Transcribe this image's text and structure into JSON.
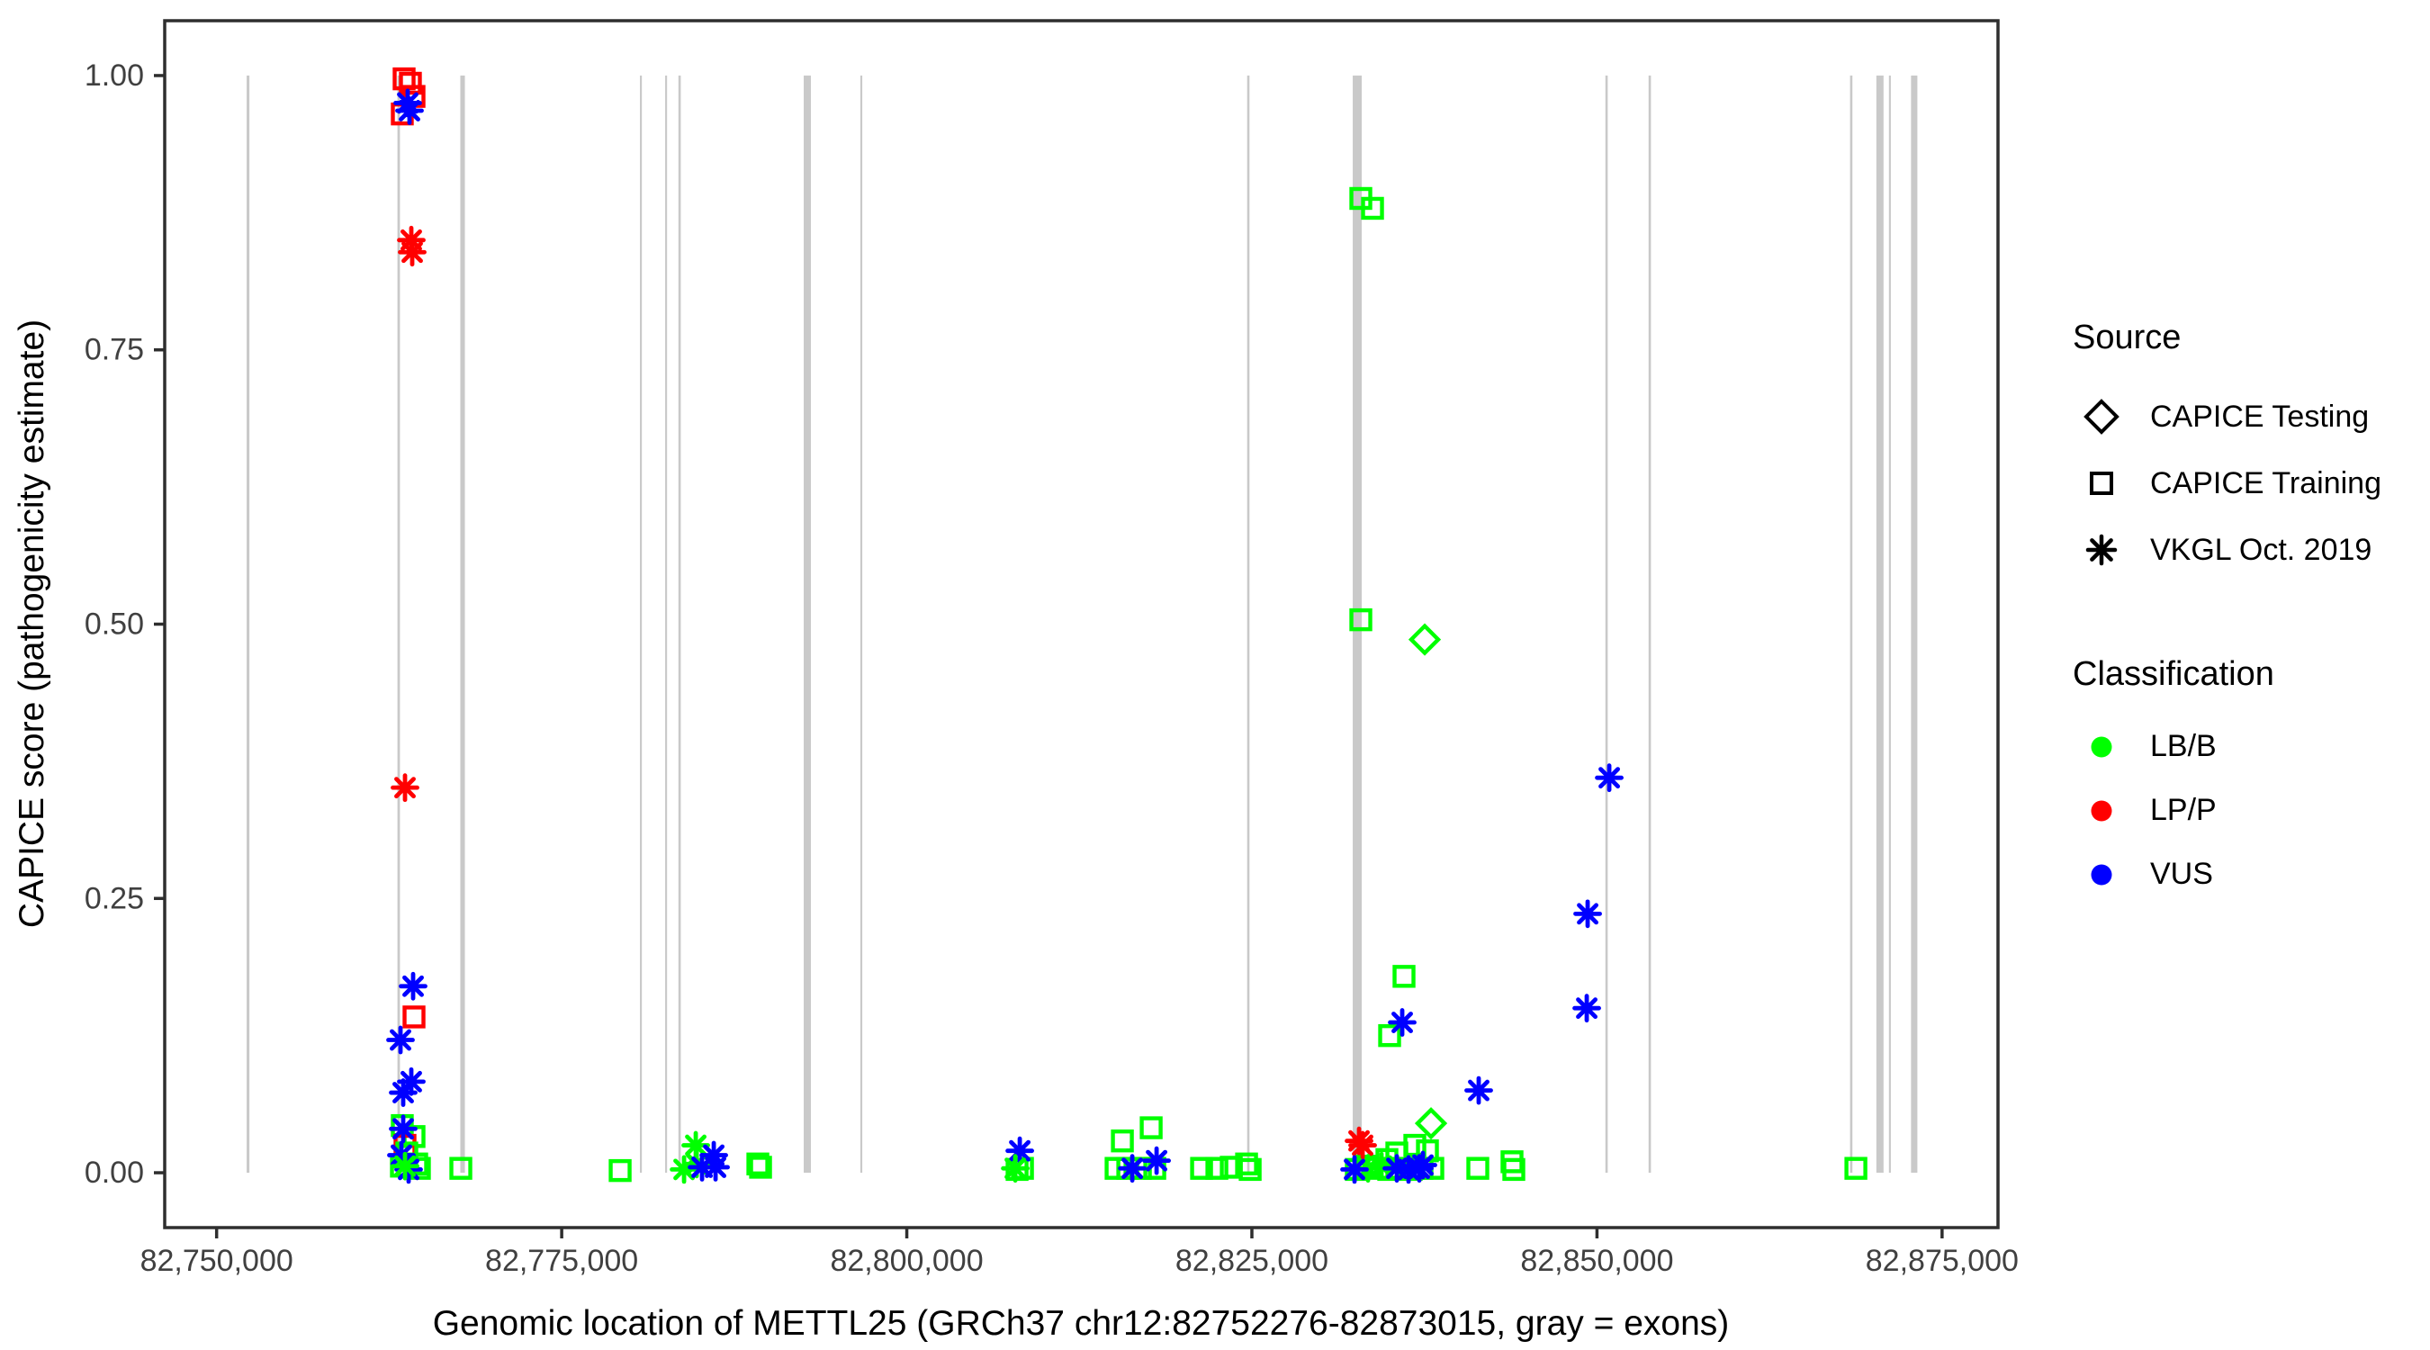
{
  "chart_data": {
    "type": "scatter",
    "title": "",
    "xlabel": "Genomic location of METTL25 (GRCh37 chr12:82752276-82873015, gray = exons)",
    "ylabel": "CAPICE score (pathogenicity estimate)",
    "x_range": [
      82746239,
      82879052
    ],
    "y_range": [
      -0.05,
      1.05
    ],
    "grid": "off",
    "x_ticks": [
      {
        "value": 82750000,
        "label": "82,750,000"
      },
      {
        "value": 82775000,
        "label": "82,775,000"
      },
      {
        "value": 82800000,
        "label": "82,800,000"
      },
      {
        "value": 82825000,
        "label": "82,825,000"
      },
      {
        "value": 82850000,
        "label": "82,850,000"
      },
      {
        "value": 82875000,
        "label": "82,875,000"
      }
    ],
    "y_ticks": [
      {
        "value": 0.0,
        "label": "0.00"
      },
      {
        "value": 0.25,
        "label": "0.25"
      },
      {
        "value": 0.5,
        "label": "0.50"
      },
      {
        "value": 0.75,
        "label": "0.75"
      },
      {
        "value": 1.0,
        "label": "1.00"
      }
    ],
    "gene": {
      "name": "METTL25",
      "assembly": "GRCh37",
      "chrom": "chr12",
      "start": 82752276,
      "end": 82873015
    },
    "exon_color": "#C9C9C9",
    "exons": [
      [
        82752276,
        200
      ],
      [
        82763191,
        180
      ],
      [
        82767820,
        330
      ],
      [
        82780737,
        140
      ],
      [
        82782563,
        140
      ],
      [
        82783541,
        170
      ],
      [
        82792792,
        520
      ],
      [
        82796705,
        140
      ],
      [
        82824742,
        170
      ],
      [
        82832631,
        650
      ],
      [
        82850694,
        170
      ],
      [
        82853824,
        170
      ],
      [
        82868420,
        170
      ],
      [
        82870500,
        520
      ],
      [
        82871220,
        140
      ],
      [
        82872980,
        460
      ]
    ],
    "source_codes": {
      "T": "CAPICE Testing",
      "R": "CAPICE Training",
      "V": "VKGL Oct. 2019"
    },
    "class_codes": {
      "B": "LB/B",
      "P": "LP/P",
      "U": "VUS"
    },
    "class_colors": {
      "B": "#00FF00",
      "P": "#FF0000",
      "U": "#0000FF"
    },
    "points": [
      [
        82763583,
        0.997,
        "R",
        "P"
      ],
      [
        82764039,
        0.993,
        "R",
        "P"
      ],
      [
        82764300,
        0.981,
        "R",
        "P"
      ],
      [
        82763452,
        0.965,
        "R",
        "P"
      ],
      [
        82763843,
        0.975,
        "V",
        "U"
      ],
      [
        82763974,
        0.968,
        "V",
        "U"
      ],
      [
        82764104,
        0.85,
        "V",
        "P"
      ],
      [
        82764170,
        0.839,
        "V",
        "P"
      ],
      [
        82763648,
        0.351,
        "V",
        "P"
      ],
      [
        82764235,
        0.17,
        "V",
        "U"
      ],
      [
        82764300,
        0.142,
        "R",
        "P"
      ],
      [
        82763322,
        0.121,
        "V",
        "U"
      ],
      [
        82764104,
        0.083,
        "V",
        "U"
      ],
      [
        82763517,
        0.073,
        "V",
        "U"
      ],
      [
        82763452,
        0.043,
        "R",
        "B"
      ],
      [
        82763517,
        0.04,
        "V",
        "U"
      ],
      [
        82764300,
        0.033,
        "R",
        "B"
      ],
      [
        82763648,
        0.025,
        "R",
        "P"
      ],
      [
        82763778,
        0.018,
        "R",
        "B"
      ],
      [
        82763387,
        0.016,
        "V",
        "U"
      ],
      [
        82763909,
        0.003,
        "V",
        "U"
      ],
      [
        82763387,
        0.006,
        "R",
        "B"
      ],
      [
        82764495,
        0.008,
        "R",
        "B"
      ],
      [
        82764691,
        0.004,
        "R",
        "B"
      ],
      [
        82763648,
        0.006,
        "V",
        "B"
      ],
      [
        82767692,
        0.004,
        "R",
        "B"
      ],
      [
        82779234,
        0.002,
        "R",
        "B"
      ],
      [
        82784712,
        0.025,
        "V",
        "B"
      ],
      [
        82784777,
        0.008,
        "V",
        "B"
      ],
      [
        82786016,
        0.016,
        "V",
        "U"
      ],
      [
        82783864,
        0.003,
        "V",
        "B"
      ],
      [
        82785168,
        0.005,
        "V",
        "U"
      ],
      [
        82786146,
        0.005,
        "V",
        "U"
      ],
      [
        82789406,
        0.005,
        "R",
        "B"
      ],
      [
        82789210,
        0.008,
        "R",
        "B"
      ],
      [
        82808185,
        0.02,
        "V",
        "U"
      ],
      [
        82807859,
        0.004,
        "V",
        "B"
      ],
      [
        82807990,
        0.003,
        "R",
        "B"
      ],
      [
        82808381,
        0.004,
        "R",
        "B"
      ],
      [
        82815618,
        0.029,
        "R",
        "B"
      ],
      [
        82817704,
        0.041,
        "R",
        "B"
      ],
      [
        82815161,
        0.004,
        "R",
        "B"
      ],
      [
        82816009,
        0.004,
        "R",
        "B"
      ],
      [
        82816922,
        0.004,
        "R",
        "B"
      ],
      [
        82817965,
        0.004,
        "R",
        "B"
      ],
      [
        82816335,
        0.004,
        "V",
        "U"
      ],
      [
        82818096,
        0.011,
        "V",
        "U"
      ],
      [
        82821355,
        0.004,
        "R",
        "B"
      ],
      [
        82822464,
        0.004,
        "R",
        "B"
      ],
      [
        82823507,
        0.005,
        "R",
        "B"
      ],
      [
        82824615,
        0.008,
        "R",
        "B"
      ],
      [
        82824876,
        0.003,
        "R",
        "B"
      ],
      [
        82832892,
        0.888,
        "R",
        "B"
      ],
      [
        82833740,
        0.879,
        "R",
        "B"
      ],
      [
        82832892,
        0.504,
        "R",
        "B"
      ],
      [
        82837521,
        0.486,
        "T",
        "B"
      ],
      [
        82836021,
        0.179,
        "R",
        "B"
      ],
      [
        82835891,
        0.137,
        "V",
        "U"
      ],
      [
        82834978,
        0.125,
        "R",
        "B"
      ],
      [
        82841432,
        0.075,
        "V",
        "U"
      ],
      [
        82837978,
        0.045,
        "T",
        "B"
      ],
      [
        82832762,
        0.029,
        "V",
        "P"
      ],
      [
        82833022,
        0.025,
        "V",
        "P"
      ],
      [
        82834783,
        0.012,
        "R",
        "B"
      ],
      [
        82835500,
        0.018,
        "R",
        "B"
      ],
      [
        82836804,
        0.025,
        "R",
        "B"
      ],
      [
        82837717,
        0.02,
        "R",
        "B"
      ],
      [
        82833413,
        0.004,
        "V",
        "B"
      ],
      [
        82834391,
        0.006,
        "V",
        "B"
      ],
      [
        82832436,
        0.003,
        "V",
        "U"
      ],
      [
        82835500,
        0.004,
        "V",
        "U"
      ],
      [
        82836348,
        0.003,
        "V",
        "U"
      ],
      [
        82837130,
        0.004,
        "V",
        "U"
      ],
      [
        82837391,
        0.007,
        "V",
        "U"
      ],
      [
        82832566,
        0.003,
        "R",
        "B"
      ],
      [
        82833348,
        0.006,
        "R",
        "B"
      ],
      [
        82834130,
        0.004,
        "R",
        "B"
      ],
      [
        82834913,
        0.003,
        "R",
        "B"
      ],
      [
        82835761,
        0.004,
        "R",
        "B"
      ],
      [
        82836543,
        0.003,
        "R",
        "B"
      ],
      [
        82837326,
        0.004,
        "R",
        "B"
      ],
      [
        82838108,
        0.004,
        "R",
        "B"
      ],
      [
        82841367,
        0.004,
        "R",
        "B"
      ],
      [
        82843845,
        0.01,
        "R",
        "B"
      ],
      [
        82843975,
        0.003,
        "R",
        "B"
      ],
      [
        82850889,
        0.36,
        "V",
        "U"
      ],
      [
        82849324,
        0.236,
        "V",
        "U"
      ],
      [
        82849259,
        0.15,
        "V",
        "U"
      ],
      [
        82868757,
        0.004,
        "R",
        "B"
      ]
    ]
  },
  "legend": {
    "source": {
      "title": "Source",
      "items": [
        {
          "symbol": "diamond",
          "label": "CAPICE Testing"
        },
        {
          "symbol": "square",
          "label": "CAPICE Training"
        },
        {
          "symbol": "asterisk",
          "label": "VKGL Oct. 2019"
        }
      ]
    },
    "classification": {
      "title": "Classification",
      "items": [
        {
          "color": "#00FF00",
          "label": "LB/B"
        },
        {
          "color": "#FF0000",
          "label": "LP/P"
        },
        {
          "color": "#0000FF",
          "label": "VUS"
        }
      ]
    }
  }
}
